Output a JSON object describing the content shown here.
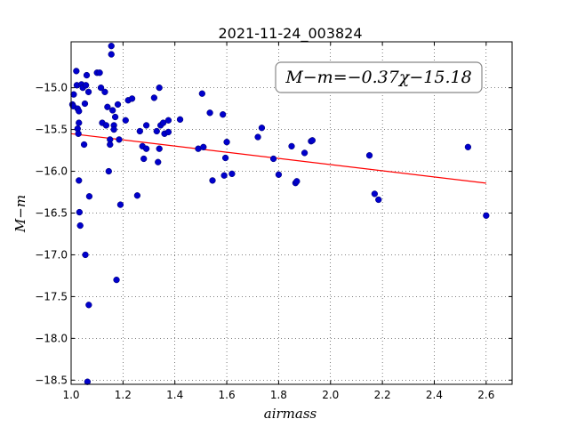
{
  "chart_data": {
    "type": "scatter",
    "title": "2021-11-24_003824",
    "xlabel": "airmass",
    "ylabel": "M−m",
    "xlim": [
      1.0,
      2.7
    ],
    "ylim": [
      -18.55,
      -14.45
    ],
    "y_inverted": true,
    "grid": true,
    "grid_style": "dotted",
    "xticks": [
      1.0,
      1.2,
      1.4,
      1.6,
      1.8,
      2.0,
      2.2,
      2.4,
      2.6
    ],
    "xtick_labels": [
      "1.0",
      "1.2",
      "1.4",
      "1.6",
      "1.8",
      "2.0",
      "2.2",
      "2.4",
      "2.6"
    ],
    "yticks": [
      -15.0,
      -15.5,
      -16.0,
      -16.5,
      -17.0,
      -17.5,
      -18.0,
      -18.5
    ],
    "ytick_labels": [
      "−15.0",
      "−15.5",
      "−16.0",
      "−16.5",
      "−17.0",
      "−17.5",
      "−18.0",
      "−18.5"
    ],
    "annotation": "M−m=−0.37χ−15.18",
    "annotation_position": "top-right",
    "fit": {
      "slope": -0.37,
      "intercept": -15.18,
      "x_range": [
        1.0,
        2.6
      ],
      "color": "#ff0000"
    },
    "point_color": "#0000cc",
    "series": [
      {
        "points": [
          [
            1.005,
            -15.2
          ],
          [
            1.008,
            -15.22
          ],
          [
            1.01,
            -15.08
          ],
          [
            1.02,
            -14.8
          ],
          [
            1.022,
            -14.97
          ],
          [
            1.025,
            -15.25
          ],
          [
            1.025,
            -15.49
          ],
          [
            1.028,
            -15.55
          ],
          [
            1.03,
            -15.42
          ],
          [
            1.03,
            -15.28
          ],
          [
            1.03,
            -16.11
          ],
          [
            1.032,
            -16.49
          ],
          [
            1.035,
            -16.65
          ],
          [
            1.04,
            -14.96
          ],
          [
            1.045,
            -15.0
          ],
          [
            1.05,
            -15.68
          ],
          [
            1.053,
            -15.19
          ],
          [
            1.055,
            -17.0
          ],
          [
            1.057,
            -14.97
          ],
          [
            1.06,
            -14.85
          ],
          [
            1.063,
            -18.52
          ],
          [
            1.067,
            -15.05
          ],
          [
            1.068,
            -17.6
          ],
          [
            1.07,
            -16.3
          ],
          [
            1.1,
            -14.82
          ],
          [
            1.11,
            -14.82
          ],
          [
            1.115,
            -15.0
          ],
          [
            1.12,
            -15.42
          ],
          [
            1.13,
            -15.05
          ],
          [
            1.135,
            -15.45
          ],
          [
            1.14,
            -15.23
          ],
          [
            1.145,
            -16.0
          ],
          [
            1.15,
            -15.62
          ],
          [
            1.15,
            -15.68
          ],
          [
            1.155,
            -14.6
          ],
          [
            1.155,
            -14.5
          ],
          [
            1.16,
            -15.27
          ],
          [
            1.165,
            -15.45
          ],
          [
            1.165,
            -15.5
          ],
          [
            1.17,
            -15.35
          ],
          [
            1.175,
            -17.3
          ],
          [
            1.18,
            -15.2
          ],
          [
            1.185,
            -15.62
          ],
          [
            1.19,
            -16.4
          ],
          [
            1.21,
            -15.39
          ],
          [
            1.22,
            -15.15
          ],
          [
            1.235,
            -15.13
          ],
          [
            1.255,
            -16.29
          ],
          [
            1.265,
            -15.52
          ],
          [
            1.275,
            -15.7
          ],
          [
            1.28,
            -15.85
          ],
          [
            1.29,
            -15.45
          ],
          [
            1.29,
            -15.73
          ],
          [
            1.32,
            -15.12
          ],
          [
            1.33,
            -15.52
          ],
          [
            1.335,
            -15.89
          ],
          [
            1.34,
            -15.0
          ],
          [
            1.34,
            -15.73
          ],
          [
            1.345,
            -15.45
          ],
          [
            1.355,
            -15.42
          ],
          [
            1.36,
            -15.55
          ],
          [
            1.375,
            -15.53
          ],
          [
            1.375,
            -15.39
          ],
          [
            1.42,
            -15.38
          ],
          [
            1.49,
            -15.73
          ],
          [
            1.505,
            -15.07
          ],
          [
            1.51,
            -15.71
          ],
          [
            1.535,
            -15.3
          ],
          [
            1.545,
            -16.11
          ],
          [
            1.585,
            -15.32
          ],
          [
            1.59,
            -16.05
          ],
          [
            1.595,
            -15.84
          ],
          [
            1.6,
            -15.65
          ],
          [
            1.62,
            -16.03
          ],
          [
            1.72,
            -15.59
          ],
          [
            1.735,
            -15.48
          ],
          [
            1.78,
            -15.85
          ],
          [
            1.8,
            -16.04
          ],
          [
            1.85,
            -15.7
          ],
          [
            1.865,
            -16.14
          ],
          [
            1.87,
            -16.12
          ],
          [
            1.9,
            -15.78
          ],
          [
            1.925,
            -15.64
          ],
          [
            1.93,
            -15.63
          ],
          [
            2.15,
            -15.81
          ],
          [
            2.17,
            -16.27
          ],
          [
            2.185,
            -16.34
          ],
          [
            2.53,
            -15.71
          ],
          [
            2.6,
            -16.53
          ]
        ]
      }
    ]
  }
}
